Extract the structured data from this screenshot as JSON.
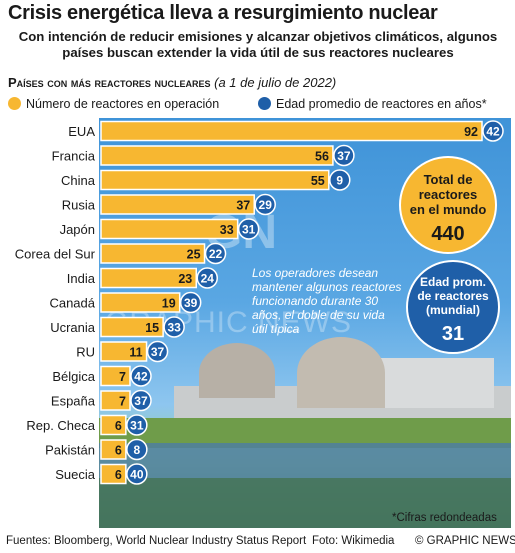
{
  "header": {
    "title": "Crisis energética lleva a resurgimiento nuclear",
    "subtitle": "Con intención de reducir emisiones y alcanzar objetivos climáticos, algunos países buscan extender la vida útil de sus reactores nucleares"
  },
  "section": {
    "heading": "Países con más reactores nucleares",
    "date": "(a 1 de julio de 2022)"
  },
  "legend": {
    "reactors": "Número de reactores en operación",
    "age": "Edad promedio de reactores en años*",
    "reactors_color": "#f7b731",
    "age_color": "#1f5fa8"
  },
  "chart_data": {
    "type": "bar",
    "orientation": "horizontal",
    "categories": [
      "EUA",
      "Francia",
      "China",
      "Rusia",
      "Japón",
      "Corea del Sur",
      "India",
      "Canadá",
      "Ucrania",
      "RU",
      "Bélgica",
      "España",
      "Rep. Checa",
      "Pakistán",
      "Suecia"
    ],
    "series": [
      {
        "name": "Número de reactores en operación",
        "values": [
          92,
          56,
          55,
          37,
          33,
          25,
          23,
          19,
          15,
          11,
          7,
          7,
          6,
          6,
          6
        ]
      },
      {
        "name": "Edad promedio de reactores en años*",
        "values": [
          42,
          37,
          9,
          29,
          31,
          22,
          24,
          39,
          33,
          37,
          42,
          37,
          31,
          8,
          40
        ]
      }
    ],
    "xlim": [
      0,
      95
    ]
  },
  "stats": {
    "total_label": "Total de reactores en el mundo",
    "total_value": "440",
    "age_label": "Edad prom. de reactores (mundial)",
    "age_value": "31"
  },
  "note": "Los operadores desean mantener algunos reactores funcionando durante 30 años, el doble de su vida útil típica",
  "footnote": "*Cifras redondeadas",
  "footer": {
    "sources": "Fuentes: Bloomberg, World Nuclear Industry Status Report",
    "photo": "Foto: Wikimedia",
    "copyright": "© GRAPHIC NEWS"
  },
  "watermark": {
    "logo": "GN",
    "text": "GRAPHIC NEWS"
  },
  "colors": {
    "bar": "#f7b731",
    "bar_stroke": "#ffffff",
    "age_circle": "#1f5fa8",
    "total_circle": "#f7b731"
  }
}
